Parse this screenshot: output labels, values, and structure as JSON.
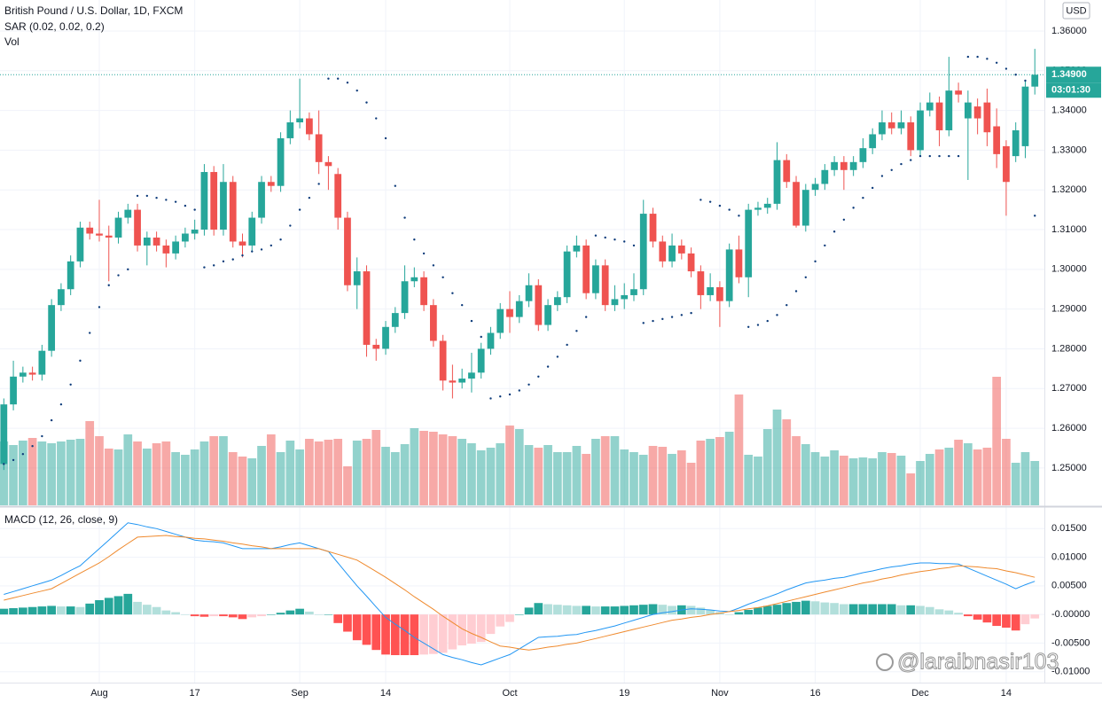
{
  "chart_data": {
    "type": "candlestick",
    "title": "British Pound / U.S. Dollar, 1D, FXCM",
    "currency": "USD",
    "grid": true,
    "up_color": "#26a69a",
    "down_color": "#ef5350",
    "xlim": [
      -0.4,
      109
    ],
    "xticks": [
      {
        "value": 10,
        "label": "Aug"
      },
      {
        "value": 20,
        "label": "17"
      },
      {
        "value": 31,
        "label": "Sep"
      },
      {
        "value": 40,
        "label": "14"
      },
      {
        "value": 53,
        "label": "Oct"
      },
      {
        "value": 65,
        "label": "19"
      },
      {
        "value": 75,
        "label": "Nov"
      },
      {
        "value": 85,
        "label": "16"
      },
      {
        "value": 96,
        "label": "Dec"
      },
      {
        "value": 105,
        "label": "14"
      }
    ],
    "ylim": [
      1.2406,
      1.3678
    ],
    "yticks": [
      {
        "value": 1.25,
        "label": "1.25000"
      },
      {
        "value": 1.26,
        "label": "1.26000"
      },
      {
        "value": 1.27,
        "label": "1.27000"
      },
      {
        "value": 1.28,
        "label": "1.28000"
      },
      {
        "value": 1.29,
        "label": "1.29000"
      },
      {
        "value": 1.3,
        "label": "1.30000"
      },
      {
        "value": 1.31,
        "label": "1.31000"
      },
      {
        "value": 1.32,
        "label": "1.32000"
      },
      {
        "value": 1.33,
        "label": "1.33000"
      },
      {
        "value": 1.34,
        "label": "1.34000"
      },
      {
        "value": 1.35,
        "label": "1.35000"
      },
      {
        "value": 1.36,
        "label": "1.36000"
      }
    ],
    "open": [
      1.251,
      1.266,
      1.273,
      1.274,
      1.2735,
      1.2795,
      1.291,
      1.295,
      1.302,
      1.3105,
      1.309,
      1.3085,
      1.308,
      1.313,
      1.315,
      1.306,
      1.308,
      1.306,
      1.304,
      1.307,
      1.309,
      1.31,
      1.3245,
      1.31,
      1.322,
      1.307,
      1.306,
      1.313,
      1.322,
      1.321,
      1.333,
      1.337,
      1.338,
      1.334,
      1.327,
      1.324,
      1.313,
      1.296,
      1.2995,
      1.281,
      1.28,
      1.2855,
      1.289,
      1.297,
      1.298,
      1.291,
      1.282,
      1.272,
      1.2715,
      1.2725,
      1.274,
      1.28,
      1.284,
      1.29,
      1.288,
      1.292,
      1.296,
      1.286,
      1.291,
      1.293,
      1.3045,
      1.306,
      1.294,
      1.301,
      1.291,
      1.2925,
      1.2935,
      1.295,
      1.314,
      1.307,
      1.302,
      1.306,
      1.304,
      1.2995,
      1.2935,
      1.2955,
      1.292,
      1.305,
      1.298,
      1.315,
      1.3155,
      1.3165,
      1.3275,
      1.322,
      1.311,
      1.32,
      1.3215,
      1.325,
      1.327,
      1.325,
      1.327,
      1.3305,
      1.334,
      1.337,
      1.3355,
      1.337,
      1.33,
      1.34,
      1.342,
      1.335,
      1.345,
      1.338,
      1.341,
      1.342,
      1.336,
      1.331,
      1.3285,
      1.331,
      1.346
    ],
    "high": [
      1.2675,
      1.277,
      1.2755,
      1.2755,
      1.281,
      1.2925,
      1.2965,
      1.3035,
      1.312,
      1.312,
      1.3175,
      1.311,
      1.3145,
      1.3165,
      1.3165,
      1.3095,
      1.3095,
      1.3075,
      1.3085,
      1.3105,
      1.3125,
      1.3265,
      1.326,
      1.3265,
      1.3235,
      1.309,
      1.3145,
      1.3235,
      1.3235,
      1.3345,
      1.34,
      1.348,
      1.3395,
      1.34,
      1.3285,
      1.3255,
      1.3145,
      1.303,
      1.301,
      1.2825,
      1.287,
      1.2905,
      1.301,
      1.3005,
      1.2995,
      1.2925,
      1.2835,
      1.276,
      1.275,
      1.279,
      1.2815,
      1.2855,
      1.2915,
      1.2945,
      1.2935,
      1.299,
      1.2975,
      1.2925,
      1.2945,
      1.306,
      1.3085,
      1.3075,
      1.3025,
      1.3025,
      1.296,
      1.2965,
      1.299,
      1.3175,
      1.3155,
      1.3085,
      1.309,
      1.3075,
      1.3055,
      1.301,
      1.299,
      1.297,
      1.3065,
      1.3085,
      1.3165,
      1.317,
      1.318,
      1.332,
      1.329,
      1.3235,
      1.3215,
      1.323,
      1.3265,
      1.3285,
      1.3285,
      1.3285,
      1.333,
      1.3355,
      1.34,
      1.3395,
      1.34,
      1.3385,
      1.342,
      1.3445,
      1.3435,
      1.3535,
      1.347,
      1.345,
      1.343,
      1.3455,
      1.3405,
      1.3325,
      1.337,
      1.3475,
      1.3555
    ],
    "low": [
      1.2495,
      1.2645,
      1.2715,
      1.272,
      1.272,
      1.278,
      1.2895,
      1.2935,
      1.3005,
      1.3075,
      1.307,
      1.297,
      1.3065,
      1.3115,
      1.3045,
      1.301,
      1.3045,
      1.3005,
      1.3025,
      1.3055,
      1.3075,
      1.3085,
      1.3085,
      1.3085,
      1.3055,
      1.303,
      1.3045,
      1.3115,
      1.3195,
      1.3195,
      1.3315,
      1.3355,
      1.3325,
      1.324,
      1.32,
      1.31,
      1.2945,
      1.29,
      1.278,
      1.277,
      1.2785,
      1.284,
      1.2875,
      1.2955,
      1.2895,
      1.2805,
      1.2695,
      1.2675,
      1.27,
      1.269,
      1.2725,
      1.2785,
      1.2825,
      1.284,
      1.2865,
      1.2905,
      1.2845,
      1.2845,
      1.2895,
      1.2915,
      1.303,
      1.2925,
      1.2925,
      1.2895,
      1.2895,
      1.29,
      1.292,
      1.2935,
      1.3055,
      1.3005,
      1.3005,
      1.3025,
      1.298,
      1.29,
      1.292,
      1.2855,
      1.2905,
      1.2965,
      1.293,
      1.3135,
      1.314,
      1.315,
      1.3205,
      1.3105,
      1.3095,
      1.3185,
      1.32,
      1.3235,
      1.32,
      1.3235,
      1.3255,
      1.329,
      1.3325,
      1.334,
      1.334,
      1.3285,
      1.3285,
      1.3385,
      1.331,
      1.3335,
      1.342,
      1.3225,
      1.334,
      1.331,
      1.3255,
      1.3135,
      1.327,
      1.328,
      1.344
    ],
    "close": [
      1.266,
      1.273,
      1.274,
      1.2735,
      1.2795,
      1.291,
      1.295,
      1.302,
      1.3105,
      1.309,
      1.3085,
      1.308,
      1.313,
      1.315,
      1.306,
      1.308,
      1.306,
      1.304,
      1.307,
      1.309,
      1.31,
      1.3245,
      1.31,
      1.322,
      1.307,
      1.306,
      1.313,
      1.322,
      1.321,
      1.333,
      1.337,
      1.338,
      1.334,
      1.327,
      1.326,
      1.313,
      1.296,
      1.2995,
      1.281,
      1.28,
      1.2855,
      1.289,
      1.297,
      1.298,
      1.291,
      1.282,
      1.272,
      1.2715,
      1.2725,
      1.274,
      1.28,
      1.284,
      1.29,
      1.288,
      1.292,
      1.296,
      1.286,
      1.291,
      1.293,
      1.3045,
      1.306,
      1.294,
      1.301,
      1.291,
      1.2925,
      1.2935,
      1.295,
      1.314,
      1.307,
      1.302,
      1.306,
      1.304,
      1.2995,
      1.2935,
      1.2955,
      1.292,
      1.305,
      1.298,
      1.315,
      1.3155,
      1.3165,
      1.3275,
      1.322,
      1.311,
      1.32,
      1.3215,
      1.325,
      1.327,
      1.325,
      1.327,
      1.3305,
      1.334,
      1.337,
      1.3355,
      1.337,
      1.33,
      1.34,
      1.342,
      1.335,
      1.345,
      1.344,
      1.342,
      1.338,
      1.3345,
      1.329,
      1.322,
      1.335,
      1.346,
      1.349
    ],
    "last_price": {
      "value": 1.349,
      "label": "1.34900"
    },
    "countdown": "03:01:30",
    "sar": {
      "name": "SAR (0.02, 0.02, 0.2)",
      "color": "#0d3b7a",
      "values": [
        1.251,
        1.252,
        1.2535,
        1.2555,
        1.258,
        1.262,
        1.266,
        1.271,
        1.277,
        1.284,
        1.2905,
        1.296,
        1.2985,
        1.3,
        1.3185,
        1.3185,
        1.318,
        1.3175,
        1.317,
        1.316,
        1.315,
        1.3005,
        1.301,
        1.302,
        1.3025,
        1.3035,
        1.3045,
        1.305,
        1.306,
        1.3075,
        1.311,
        1.315,
        1.318,
        1.3215,
        1.348,
        1.348,
        1.347,
        1.345,
        1.342,
        1.338,
        1.333,
        1.321,
        1.313,
        1.3075,
        1.304,
        1.301,
        1.298,
        1.294,
        1.291,
        1.287,
        1.283,
        1.2675,
        1.268,
        1.2685,
        1.2695,
        1.271,
        1.273,
        1.2755,
        1.278,
        1.281,
        1.2845,
        1.288,
        1.3085,
        1.308,
        1.3075,
        1.307,
        1.306,
        1.2865,
        1.287,
        1.2875,
        1.288,
        1.2885,
        1.289,
        1.3175,
        1.317,
        1.316,
        1.315,
        1.3135,
        1.2855,
        1.286,
        1.287,
        1.2885,
        1.291,
        1.2945,
        1.298,
        1.302,
        1.306,
        1.3095,
        1.3125,
        1.3155,
        1.318,
        1.3205,
        1.3235,
        1.325,
        1.3265,
        1.3275,
        1.3285,
        1.3285,
        1.3285,
        1.3285,
        1.3285,
        1.3535,
        1.3535,
        1.353,
        1.352,
        1.3505,
        1.349,
        1.3475,
        1.3135
      ]
    },
    "volume": {
      "name": "Vol",
      "values": [
        72,
        68,
        73,
        76,
        72,
        70,
        72,
        74,
        75,
        95,
        78,
        64,
        63,
        80,
        72,
        64,
        70,
        72,
        60,
        57,
        63,
        72,
        78,
        78,
        60,
        55,
        53,
        67,
        80,
        60,
        73,
        63,
        75,
        72,
        74,
        75,
        44,
        73,
        75,
        85,
        66,
        60,
        69,
        87,
        84,
        83,
        80,
        78,
        75,
        70,
        62,
        65,
        70,
        90,
        86,
        68,
        65,
        68,
        60,
        60,
        67,
        58,
        75,
        78,
        78,
        63,
        60,
        57,
        67,
        66,
        58,
        62,
        48,
        73,
        75,
        77,
        83,
        125,
        57,
        55,
        86,
        108,
        97,
        78,
        69,
        60,
        55,
        62,
        56,
        53,
        54,
        53,
        60,
        59,
        56,
        36,
        50,
        58,
        63,
        65,
        74,
        70,
        63,
        65,
        145,
        75,
        48,
        60,
        50
      ]
    },
    "macd": {
      "title": "MACD (12, 26, close, 9)",
      "ylim": [
        -0.0119,
        0.0186
      ],
      "yticks": [
        {
          "value": 0.015,
          "label": "0.01500"
        },
        {
          "value": 0.01,
          "label": "0.01000"
        },
        {
          "value": 0.005,
          "label": "0.00500"
        },
        {
          "value": 0,
          "label": "-0.00000"
        },
        {
          "value": -0.005,
          "label": "-0.00500"
        },
        {
          "value": -0.01,
          "label": "-0.01000"
        }
      ],
      "macd_line": {
        "color": "#2196f3",
        "values": [
          0.0035,
          0.004,
          0.0045,
          0.005,
          0.0055,
          0.006,
          0.0068,
          0.0077,
          0.0085,
          0.01,
          0.0115,
          0.013,
          0.0145,
          0.016,
          0.0157,
          0.0153,
          0.015,
          0.0145,
          0.014,
          0.0135,
          0.013,
          0.0128,
          0.0127,
          0.0125,
          0.012,
          0.0115,
          0.0115,
          0.0115,
          0.0115,
          0.0118,
          0.0122,
          0.0125,
          0.012,
          0.0115,
          0.011,
          0.009,
          0.007,
          0.005,
          0.0032,
          0.0013,
          -0.0005,
          -0.0017,
          -0.0028,
          -0.004,
          -0.005,
          -0.006,
          -0.007,
          -0.0075,
          -0.0079,
          -0.0084,
          -0.0088,
          -0.0082,
          -0.0076,
          -0.007,
          -0.006,
          -0.005,
          -0.004,
          -0.0039,
          -0.0038,
          -0.0036,
          -0.0035,
          -0.0031,
          -0.0028,
          -0.0024,
          -0.002,
          -0.0015,
          -0.001,
          -0.0005,
          0.0,
          0.0003,
          0.0005,
          0.0008,
          0.001,
          0.0009,
          0.0008,
          0.0006,
          0.0005,
          0.0011,
          0.0018,
          0.0024,
          0.003,
          0.0036,
          0.0043,
          0.0049,
          0.0055,
          0.0058,
          0.006,
          0.0063,
          0.0065,
          0.0069,
          0.0073,
          0.0076,
          0.008,
          0.0083,
          0.0085,
          0.0088,
          0.009,
          0.009,
          0.0089,
          0.0089,
          0.0088,
          0.0081,
          0.0074,
          0.0067,
          0.006,
          0.0053,
          0.0045,
          0.0052,
          0.0058
        ]
      },
      "signal_line": {
        "color": "#ef8a2e",
        "values": [
          0.0025,
          0.0029,
          0.0033,
          0.0037,
          0.0041,
          0.0045,
          0.0054,
          0.0063,
          0.0072,
          0.0081,
          0.009,
          0.0101,
          0.0113,
          0.0124,
          0.0135,
          0.0136,
          0.0137,
          0.0138,
          0.0136,
          0.0135,
          0.0133,
          0.0132,
          0.013,
          0.0128,
          0.0125,
          0.0123,
          0.012,
          0.0118,
          0.0115,
          0.0115,
          0.0115,
          0.0115,
          0.0115,
          0.0115,
          0.011,
          0.0105,
          0.01,
          0.0095,
          0.0085,
          0.0075,
          0.0065,
          0.0054,
          0.0043,
          0.0031,
          0.002,
          0.0009,
          -0.0003,
          -0.0014,
          -0.0025,
          -0.0033,
          -0.004,
          -0.0048,
          -0.0055,
          -0.0057,
          -0.006,
          -0.0062,
          -0.006,
          -0.0057,
          -0.0055,
          -0.0052,
          -0.005,
          -0.0046,
          -0.0042,
          -0.0038,
          -0.0034,
          -0.003,
          -0.0026,
          -0.0022,
          -0.0018,
          -0.0014,
          -0.001,
          -0.0008,
          -0.0005,
          -0.0003,
          0.0,
          0.0002,
          0.0005,
          0.0007,
          0.001,
          0.0012,
          0.0015,
          0.0019,
          0.0023,
          0.0027,
          0.0031,
          0.0035,
          0.0039,
          0.0043,
          0.0047,
          0.0051,
          0.0055,
          0.0058,
          0.0062,
          0.0065,
          0.0069,
          0.0072,
          0.0075,
          0.0077,
          0.008,
          0.0082,
          0.0085,
          0.0084,
          0.0083,
          0.0081,
          0.008,
          0.0076,
          0.0073,
          0.0069,
          0.0065
        ]
      },
      "histogram": {
        "colors": [
          "#26a69a",
          "#b2dfdb",
          "#ff5252",
          "#ffcdd2"
        ],
        "values": [
          0.001,
          0.0011,
          0.0012,
          0.0013,
          0.0014,
          0.0015,
          0.0014,
          0.0014,
          0.0013,
          0.0019,
          0.0025,
          0.0029,
          0.0032,
          0.0036,
          0.0022,
          0.0017,
          0.0013,
          0.0007,
          0.0004,
          0.0,
          -0.0003,
          -0.0004,
          -0.0003,
          -0.0003,
          -0.0005,
          -0.0008,
          -0.0005,
          -0.0003,
          0.0,
          0.0003,
          0.0007,
          0.001,
          0.0005,
          0.0,
          0.0,
          -0.0015,
          -0.003,
          -0.0045,
          -0.0053,
          -0.0062,
          -0.007,
          -0.0071,
          -0.0071,
          -0.0071,
          -0.007,
          -0.0069,
          -0.0067,
          -0.0061,
          -0.0054,
          -0.0051,
          -0.0048,
          -0.0034,
          -0.0021,
          -0.0013,
          0.0,
          0.0012,
          0.002,
          0.0018,
          0.0017,
          0.0016,
          0.0015,
          0.0015,
          0.0014,
          0.0014,
          0.0014,
          0.0015,
          0.0016,
          0.0017,
          0.0018,
          0.0017,
          0.0015,
          0.0016,
          0.0015,
          0.0012,
          0.0008,
          0.0004,
          0.0,
          0.0004,
          0.0008,
          0.0012,
          0.0015,
          0.0017,
          0.002,
          0.0022,
          0.0024,
          0.0023,
          0.0021,
          0.002,
          0.0018,
          0.0018,
          0.0018,
          0.0018,
          0.0018,
          0.0018,
          0.0016,
          0.0016,
          0.0015,
          0.0013,
          0.0009,
          0.0007,
          0.0003,
          -0.0003,
          -0.0009,
          -0.0014,
          -0.002,
          -0.0023,
          -0.0028,
          -0.0017,
          -0.0007
        ]
      }
    },
    "watermark": "@laraibnasir103"
  }
}
